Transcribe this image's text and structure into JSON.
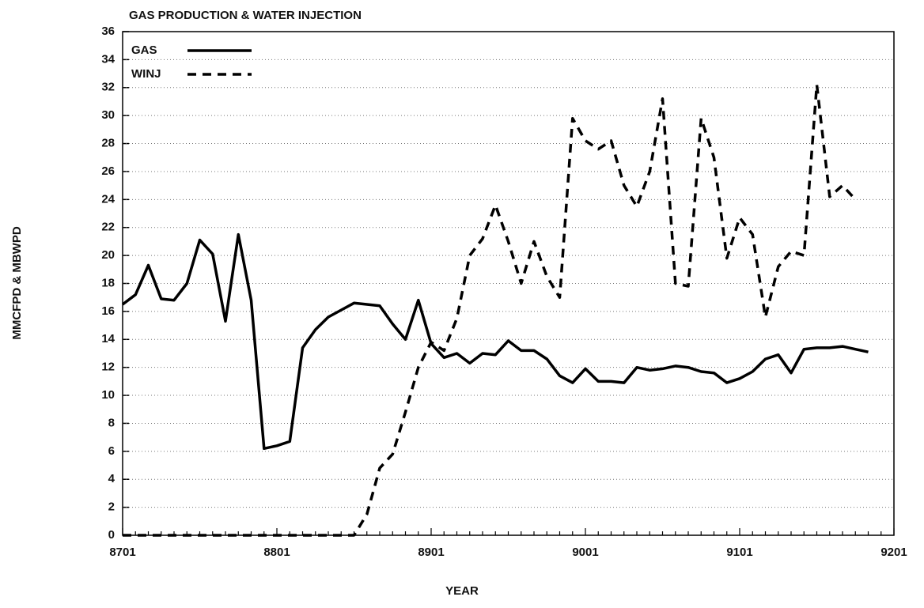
{
  "chart_data": {
    "type": "line",
    "title": "GAS PRODUCTION & WATER INJECTION",
    "x_label": "YEAR",
    "y_label": "MMCFPD & MBWPD",
    "categories": [
      "8701",
      null,
      null,
      null,
      null,
      null,
      null,
      null,
      null,
      null,
      null,
      null,
      "8801",
      null,
      null,
      null,
      null,
      null,
      null,
      null,
      null,
      null,
      null,
      null,
      "8901",
      null,
      null,
      null,
      null,
      null,
      null,
      null,
      null,
      null,
      null,
      null,
      "9001",
      null,
      null,
      null,
      null,
      null,
      null,
      null,
      null,
      null,
      null,
      null,
      "9101",
      null,
      null,
      null,
      null,
      null,
      null,
      null,
      null,
      null,
      null,
      null,
      "9201"
    ],
    "series": [
      {
        "name": "GAS",
        "color": "#000000",
        "dash": false,
        "values": [
          16.5,
          17.2,
          19.3,
          16.9,
          16.8,
          18.0,
          21.1,
          20.1,
          15.3,
          21.5,
          16.8,
          6.2,
          6.4,
          6.7,
          13.4,
          14.7,
          15.6,
          16.1,
          16.6,
          16.5,
          16.4,
          15.1,
          14.0,
          16.8,
          13.7,
          12.7,
          13.0,
          12.3,
          13.0,
          12.9,
          13.9,
          13.2,
          13.2,
          12.6,
          11.4,
          10.9,
          11.9,
          11.0,
          11.0,
          10.9,
          12.0,
          11.8,
          11.9,
          12.1,
          12.0,
          11.7,
          11.6,
          10.9,
          11.2,
          11.7,
          12.6,
          12.9,
          11.6,
          13.3,
          13.4,
          13.4,
          13.5,
          13.3,
          13.1,
          null,
          null
        ]
      },
      {
        "name": "WINJ",
        "color": "#000000",
        "dash": true,
        "values": [
          0,
          0,
          0,
          0,
          0,
          0,
          0,
          0,
          0,
          0,
          0,
          0,
          0,
          0,
          0,
          0,
          0,
          0,
          0,
          1.5,
          4.8,
          5.8,
          8.8,
          12.0,
          13.8,
          13.2,
          15.5,
          20.0,
          21.2,
          23.6,
          21.0,
          18.0,
          21.0,
          18.5,
          17.0,
          29.8,
          28.2,
          27.6,
          28.2,
          25.0,
          23.5,
          26.0,
          31.2,
          18.0,
          17.8,
          29.8,
          27.0,
          19.8,
          22.7,
          21.5,
          15.6,
          19.2,
          20.3,
          20.0,
          32.2,
          24.2,
          25.0,
          24.0,
          null,
          null,
          null
        ]
      }
    ],
    "ylim": [
      0,
      36
    ],
    "yticks": [
      0,
      2,
      4,
      6,
      8,
      10,
      12,
      14,
      16,
      18,
      20,
      22,
      24,
      26,
      28,
      30,
      32,
      34,
      36
    ],
    "grid": true,
    "legend": "upper-left"
  }
}
